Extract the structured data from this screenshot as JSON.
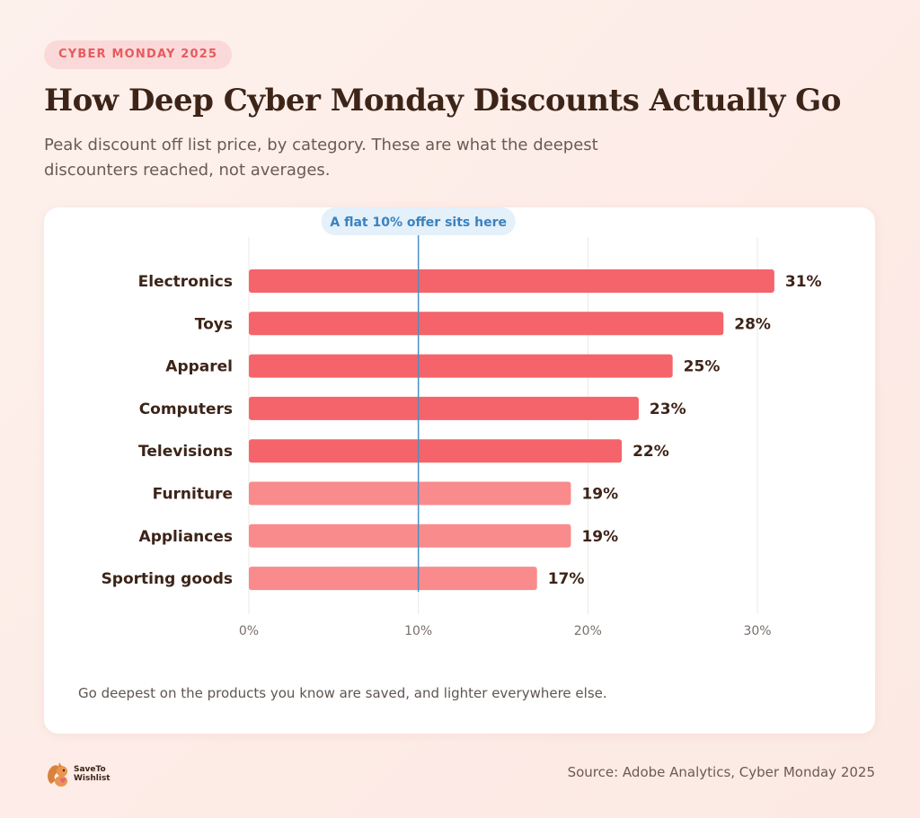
{
  "header": {
    "eyebrow": "CYBER MONDAY 2025",
    "title": "How Deep Cyber Monday Discounts Actually Go",
    "subtitle": "Peak discount off list price, by category. These are what the deepest discounters reached, not averages."
  },
  "chart_data": {
    "type": "bar",
    "orientation": "horizontal",
    "categories": [
      "Electronics",
      "Toys",
      "Apparel",
      "Computers",
      "Televisions",
      "Furniture",
      "Appliances",
      "Sporting goods"
    ],
    "values": [
      31,
      28,
      25,
      23,
      22,
      19,
      19,
      17
    ],
    "value_labels": [
      "31%",
      "28%",
      "25%",
      "23%",
      "22%",
      "19%",
      "19%",
      "17%"
    ],
    "xlim": [
      0,
      30
    ],
    "xticks": [
      0,
      10,
      20,
      30
    ],
    "xtick_labels": [
      "0%",
      "10%",
      "20%",
      "30%"
    ],
    "grid": true,
    "reference_line": {
      "value": 10,
      "label": "A flat 10% offer sits here",
      "color": "#4a90c2"
    },
    "colors": {
      "highlight": "#f4646a",
      "muted": "#f98b8d"
    },
    "highlight_count": 5
  },
  "note": "Go deepest on the products you know are saved, and lighter everywhere else.",
  "footer": {
    "logo_text": "SaveTo Wishlist",
    "logo_icon": "squirrel-icon",
    "source": "Source: Adobe Analytics, Cyber Monday 2025"
  }
}
